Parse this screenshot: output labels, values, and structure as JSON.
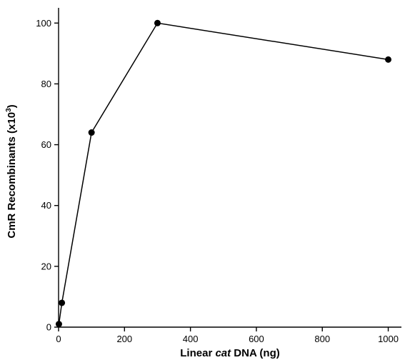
{
  "chart_data": {
    "type": "line",
    "title": "",
    "xlabel": {
      "before": "Linear ",
      "italic": "cat",
      "after": " DNA (ng)"
    },
    "ylabel": {
      "before": "CmR Recombinants (x10",
      "sup": "3",
      "after": ")"
    },
    "xlim": [
      0,
      1040
    ],
    "ylim": [
      0,
      105
    ],
    "xticks": [
      0,
      200,
      400,
      600,
      800,
      1000
    ],
    "yticks": [
      0,
      20,
      40,
      60,
      80,
      100
    ],
    "grid": false,
    "series": [
      {
        "x": [
          1,
          10,
          100,
          300,
          1000
        ],
        "y": [
          1,
          8,
          64,
          100,
          88
        ],
        "color": "#000000",
        "marker": "filled-circle"
      }
    ]
  }
}
